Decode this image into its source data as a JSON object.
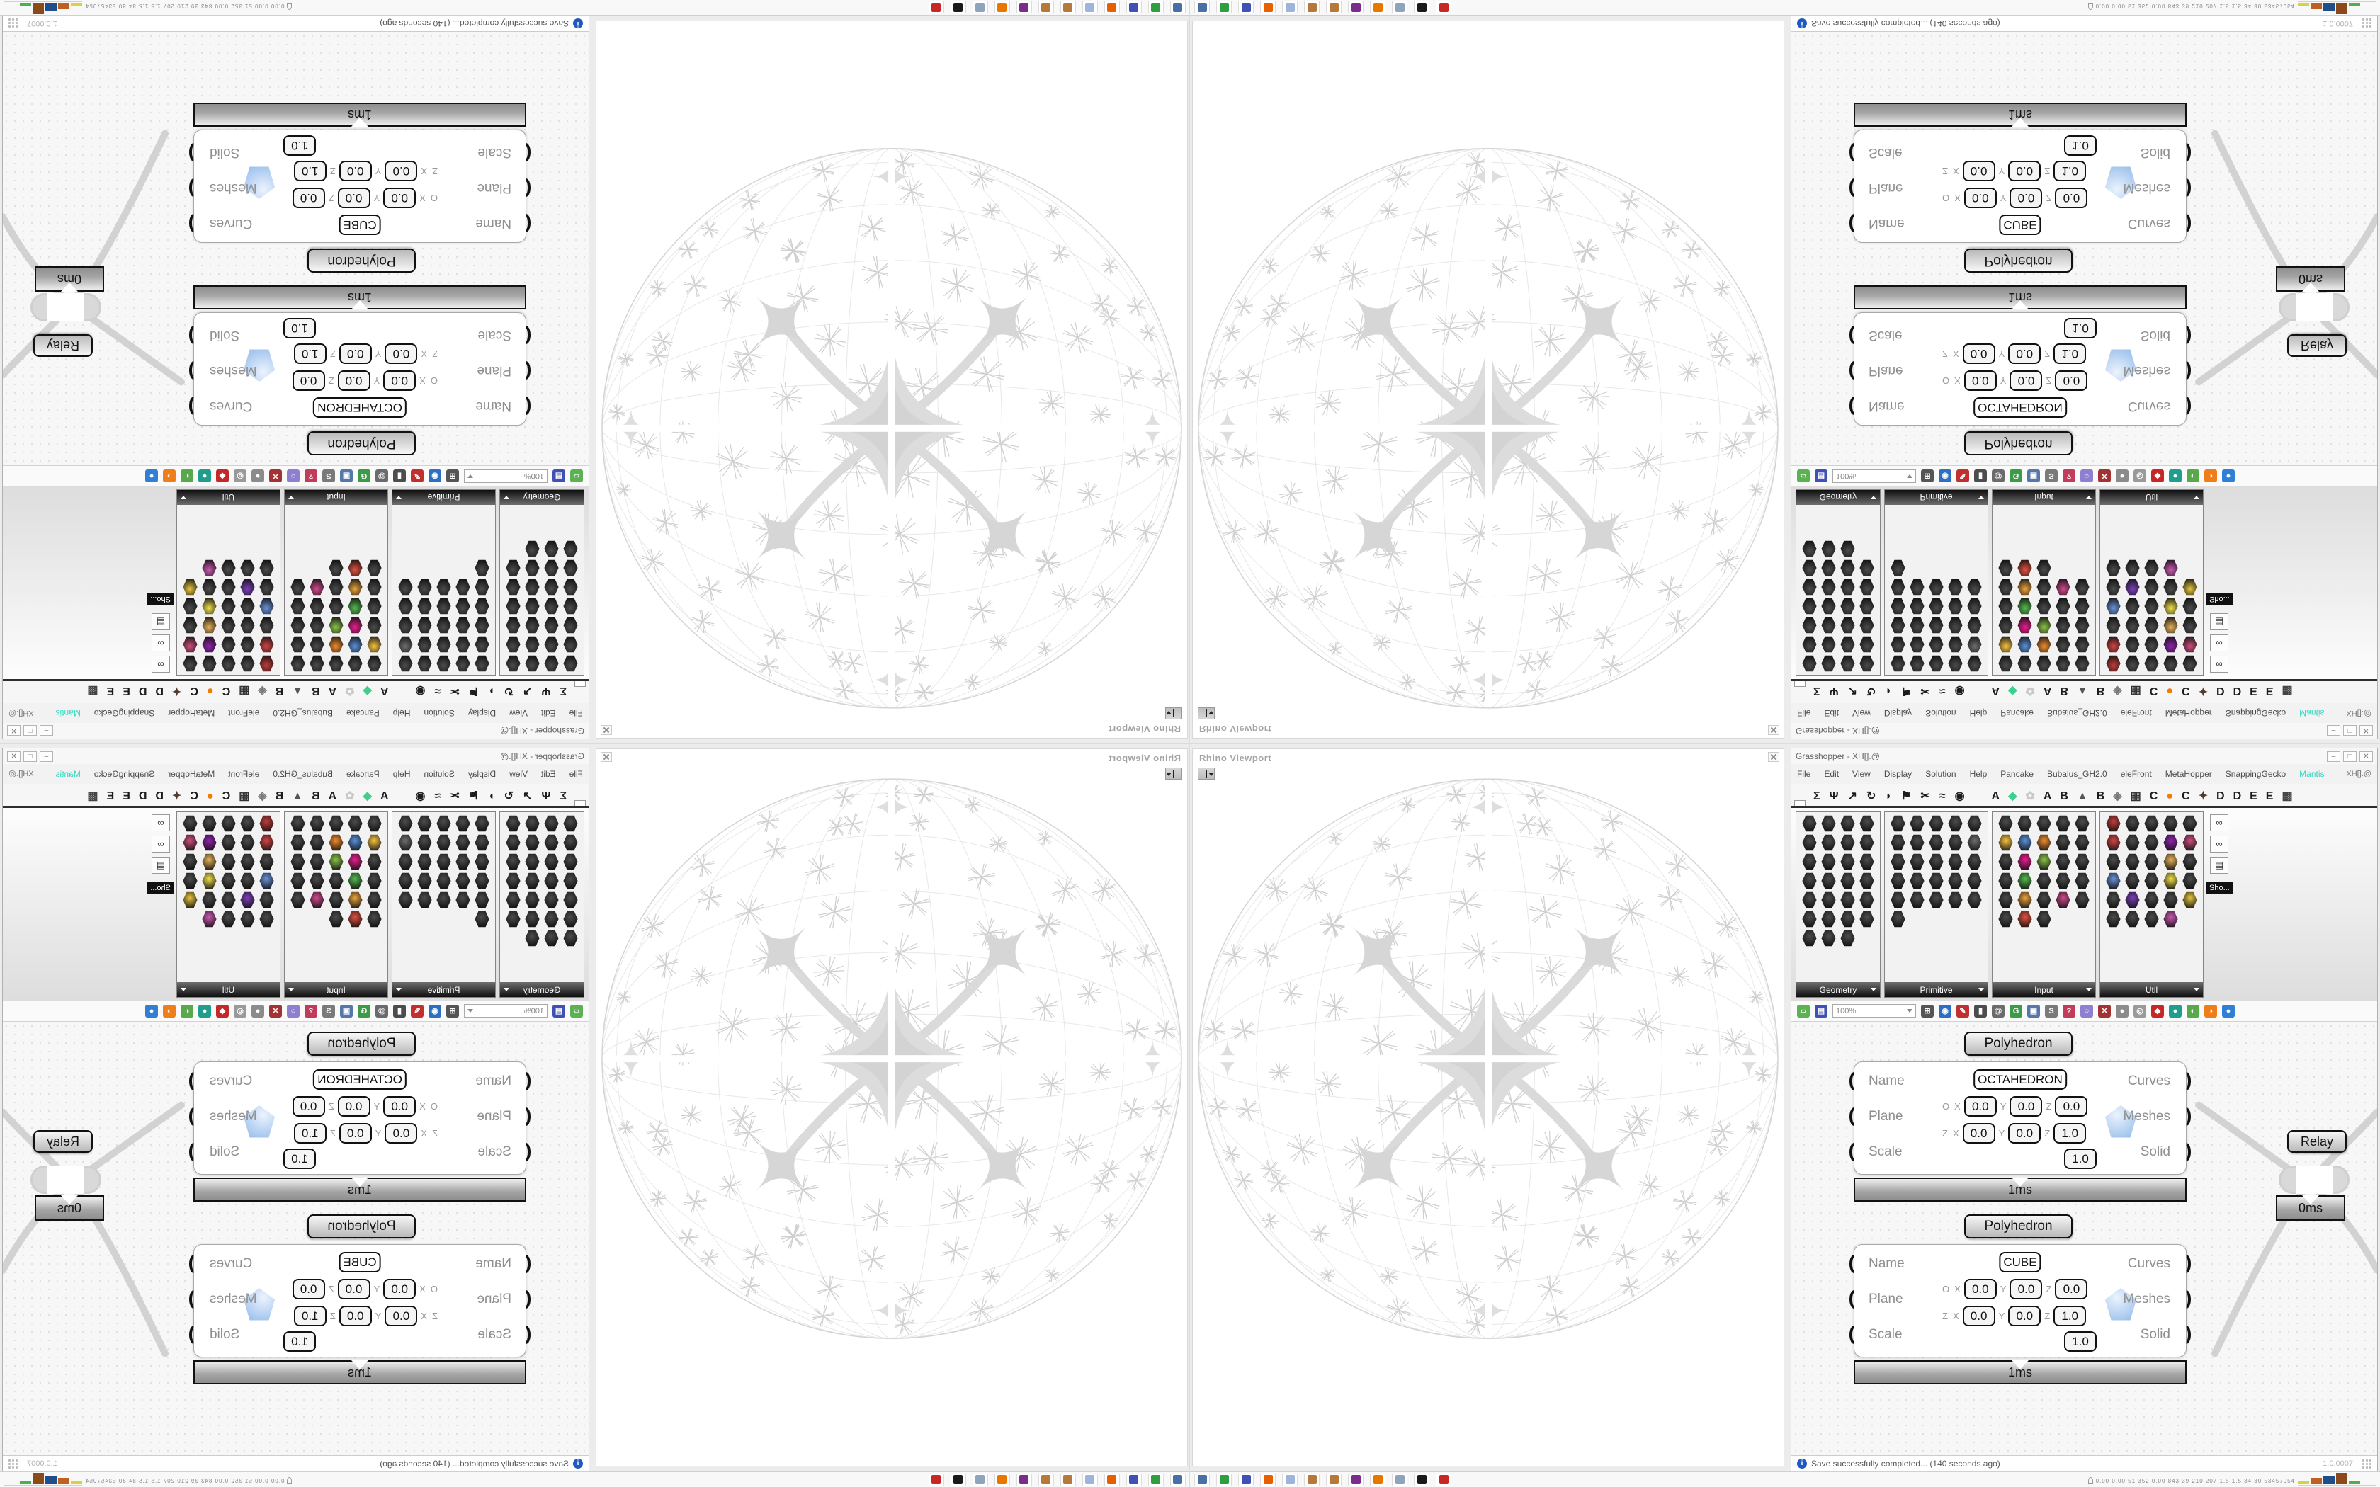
{
  "app": {
    "title": "Grasshopper - XH[].@",
    "window_buttons": {
      "minimize": "–",
      "maximize": "□",
      "close": "✕"
    }
  },
  "menu": {
    "items": [
      {
        "label": "File"
      },
      {
        "label": "Edit"
      },
      {
        "label": "View"
      },
      {
        "label": "Display"
      },
      {
        "label": "Solution"
      },
      {
        "label": "Help"
      },
      {
        "label": "Pancake"
      },
      {
        "label": "Bubalus_GH2.0"
      },
      {
        "label": "eleFront"
      },
      {
        "label": "MetaHopper"
      },
      {
        "label": "SnappingGecko"
      },
      {
        "label": "Mantis",
        "color": "#38d6c2"
      }
    ],
    "right_label": "XH[].@"
  },
  "tabs": {
    "primary": [
      {
        "glyph": "hex",
        "selected": true
      },
      {
        "glyph": "Σ"
      },
      {
        "glyph": "Ψ"
      },
      {
        "glyph": "↗"
      },
      {
        "glyph": "↻"
      },
      {
        "glyph": "◗"
      },
      {
        "glyph": "⚑"
      },
      {
        "glyph": "✂"
      },
      {
        "glyph": "≈"
      },
      {
        "glyph": "◉"
      }
    ],
    "plugins": [
      {
        "glyph": "A"
      },
      {
        "glyph": "◆",
        "color": "#3ecf8e"
      },
      {
        "glyph": "✿",
        "color": "#c9c9c9"
      },
      {
        "glyph": "A"
      },
      {
        "glyph": "B"
      },
      {
        "glyph": "▲",
        "color": "#555555"
      },
      {
        "glyph": "B"
      },
      {
        "glyph": "◈",
        "color": "#7a7a7a"
      },
      {
        "glyph": "▦",
        "color": "#333333"
      },
      {
        "glyph": "C"
      },
      {
        "glyph": "●",
        "color": "#f07c00"
      },
      {
        "glyph": "C"
      },
      {
        "glyph": "✦",
        "color": "#57392b"
      },
      {
        "glyph": "D"
      },
      {
        "glyph": "D"
      },
      {
        "glyph": "E"
      },
      {
        "glyph": "E"
      },
      {
        "glyph": "▩",
        "color": "#444444"
      }
    ]
  },
  "panels": [
    {
      "label": "Geometry",
      "cols": 4,
      "count": 27,
      "accents": {}
    },
    {
      "label": "Primitive",
      "cols": 5,
      "count": 26,
      "accents": {
        "9": "#6d6d6d"
      }
    },
    {
      "label": "Input",
      "cols": 5,
      "count": 28,
      "accents": {
        "5": "#f6c344",
        "6": "#5a8fd6",
        "7": "#ef8b2e",
        "11": "#e91e8c",
        "12": "#8bc34a",
        "16": "#55b94e",
        "21": "#e8a33d",
        "23": "#cf4a8b",
        "26": "#e05140"
      }
    },
    {
      "label": "Util",
      "cols": 5,
      "count": 29,
      "accents": {
        "0": "#c23b3b",
        "5": "#d04545",
        "8": "#8e24aa",
        "9": "#c94f7c",
        "13": "#e5b25a",
        "15": "#6a93d8",
        "18": "#f2e14c",
        "21": "#7b3fb5",
        "24": "#e4c23f",
        "28": "#c95ab0"
      }
    }
  ],
  "show_panel": {
    "tooltip": "Sho...",
    "icons": [
      "∞",
      "∞",
      "▤"
    ]
  },
  "canvas_toolbar": {
    "open_color": "#5cb153",
    "save_color": "#3f51b5",
    "zoom_value": "100%",
    "icons": [
      {
        "name": "zoom-extents-icon",
        "glyph": "⊞",
        "color": "#555555"
      },
      {
        "name": "preview-eye-icon",
        "glyph": "◉",
        "color": "#2d6fc2"
      },
      {
        "name": "sketch-pen-icon",
        "glyph": "✎",
        "color": "#c22f2f"
      },
      {
        "name": "bake-icon",
        "glyph": "▮",
        "color": "#4d4d4d"
      },
      {
        "name": "annotate-icon",
        "glyph": "@",
        "color": "#6b6b6b"
      },
      {
        "name": "gha-recycle-icon",
        "glyph": "G",
        "color": "#3c9c45"
      },
      {
        "name": "export-window-icon",
        "glyph": "▣",
        "color": "#5577aa"
      },
      {
        "name": "finder-icon",
        "glyph": "S",
        "color": "#7a7a7a"
      },
      {
        "name": "package-icon",
        "glyph": "?",
        "color": "#c23b5a"
      },
      {
        "name": "balloon-icon",
        "glyph": "○",
        "color": "#8f7fd0"
      },
      {
        "name": "galapagos-icon",
        "glyph": "✕",
        "color": "#a33333"
      },
      {
        "name": "gem-grey-icon",
        "glyph": "●",
        "color": "#8b8b8b"
      },
      {
        "name": "rings-icon",
        "glyph": "◎",
        "color": "#9a9a9a"
      },
      {
        "name": "gem-red-icon",
        "glyph": "◆",
        "color": "#c62828"
      },
      {
        "name": "preview-teal-icon",
        "glyph": "●",
        "color": "#1f9e8e"
      },
      {
        "name": "preview-green-icon",
        "glyph": "◐",
        "color": "#58a84c"
      },
      {
        "name": "preview-orange-icon",
        "glyph": "◑",
        "color": "#ef7d1a"
      },
      {
        "name": "preview-blue-icon",
        "glyph": "●",
        "color": "#2f7fd6"
      }
    ]
  },
  "ui": {
    "axis_letters": [
      "X",
      "Y",
      "Z"
    ]
  },
  "canvas": {
    "components": [
      {
        "label": "Polyhedron",
        "name_value": "OCTAHEDRON",
        "inputs": [
          "Name",
          "Plane",
          "Scale"
        ],
        "outputs": [
          "Curves",
          "Meshes",
          "Solid"
        ],
        "origin_row": {
          "axis": "O",
          "x": "0.0",
          "y": "0.0",
          "z": "0.0"
        },
        "zaxis_row": {
          "axis": "Z",
          "x": "0.0",
          "y": "0.0",
          "z": "1.0"
        },
        "scale_value": "1.0",
        "runtime": "1ms"
      },
      {
        "label": "Polyhedron",
        "name_value": "CUBE",
        "inputs": [
          "Name",
          "Plane",
          "Scale"
        ],
        "outputs": [
          "Curves",
          "Meshes",
          "Solid"
        ],
        "origin_row": {
          "axis": "O",
          "x": "0.0",
          "y": "0.0",
          "z": "0.0"
        },
        "zaxis_row": {
          "axis": "Z",
          "x": "0.0",
          "y": "0.0",
          "z": "1.0"
        },
        "scale_value": "1.0",
        "runtime": "1ms"
      }
    ],
    "relay": {
      "label": "Relay",
      "runtime": "0ms"
    }
  },
  "status": {
    "message": "Save successfully completed... (140 seconds ago)",
    "version": "1.0.0007"
  },
  "viewport": {
    "label": "Rhino Viewport"
  },
  "taskbar": {
    "icons": [
      {
        "name": "screenshot-tool-icon",
        "color": "#4a6fa5"
      },
      {
        "name": "screen-recorder-icon",
        "color": "#2f9e3f"
      },
      {
        "name": "floppy-64-icon",
        "color": "#3f51b5"
      },
      {
        "name": "firefox-icon",
        "color": "#e66000"
      },
      {
        "name": "calculator-icon",
        "color": "#9fb4d8"
      },
      {
        "name": "image-editor-icon",
        "color": "#b5793c"
      },
      {
        "name": "image-editor-2-icon",
        "color": "#b5793c"
      },
      {
        "name": "media-player-icon",
        "color": "#7b2d8b"
      },
      {
        "name": "blender-icon",
        "color": "#ea7600"
      },
      {
        "name": "document-viewer-icon",
        "color": "#8fa3bd"
      },
      {
        "name": "vector-editor-icon",
        "color": "#1a1a1a"
      },
      {
        "name": "security-icon",
        "color": "#c62828"
      }
    ],
    "monitor": {
      "values": "0.00 0.00  51  352 0.00 843  39  210 207  1.5  1.5  34  30 53457054",
      "bars": [
        {
          "h": 4,
          "c": "#d8d23e"
        },
        {
          "h": 9,
          "c": "#c06020"
        },
        {
          "h": 12,
          "c": "#1f4e8c"
        },
        {
          "h": 16,
          "c": "#8c4a1a"
        },
        {
          "h": 5,
          "c": "#4caf50"
        }
      ]
    }
  }
}
